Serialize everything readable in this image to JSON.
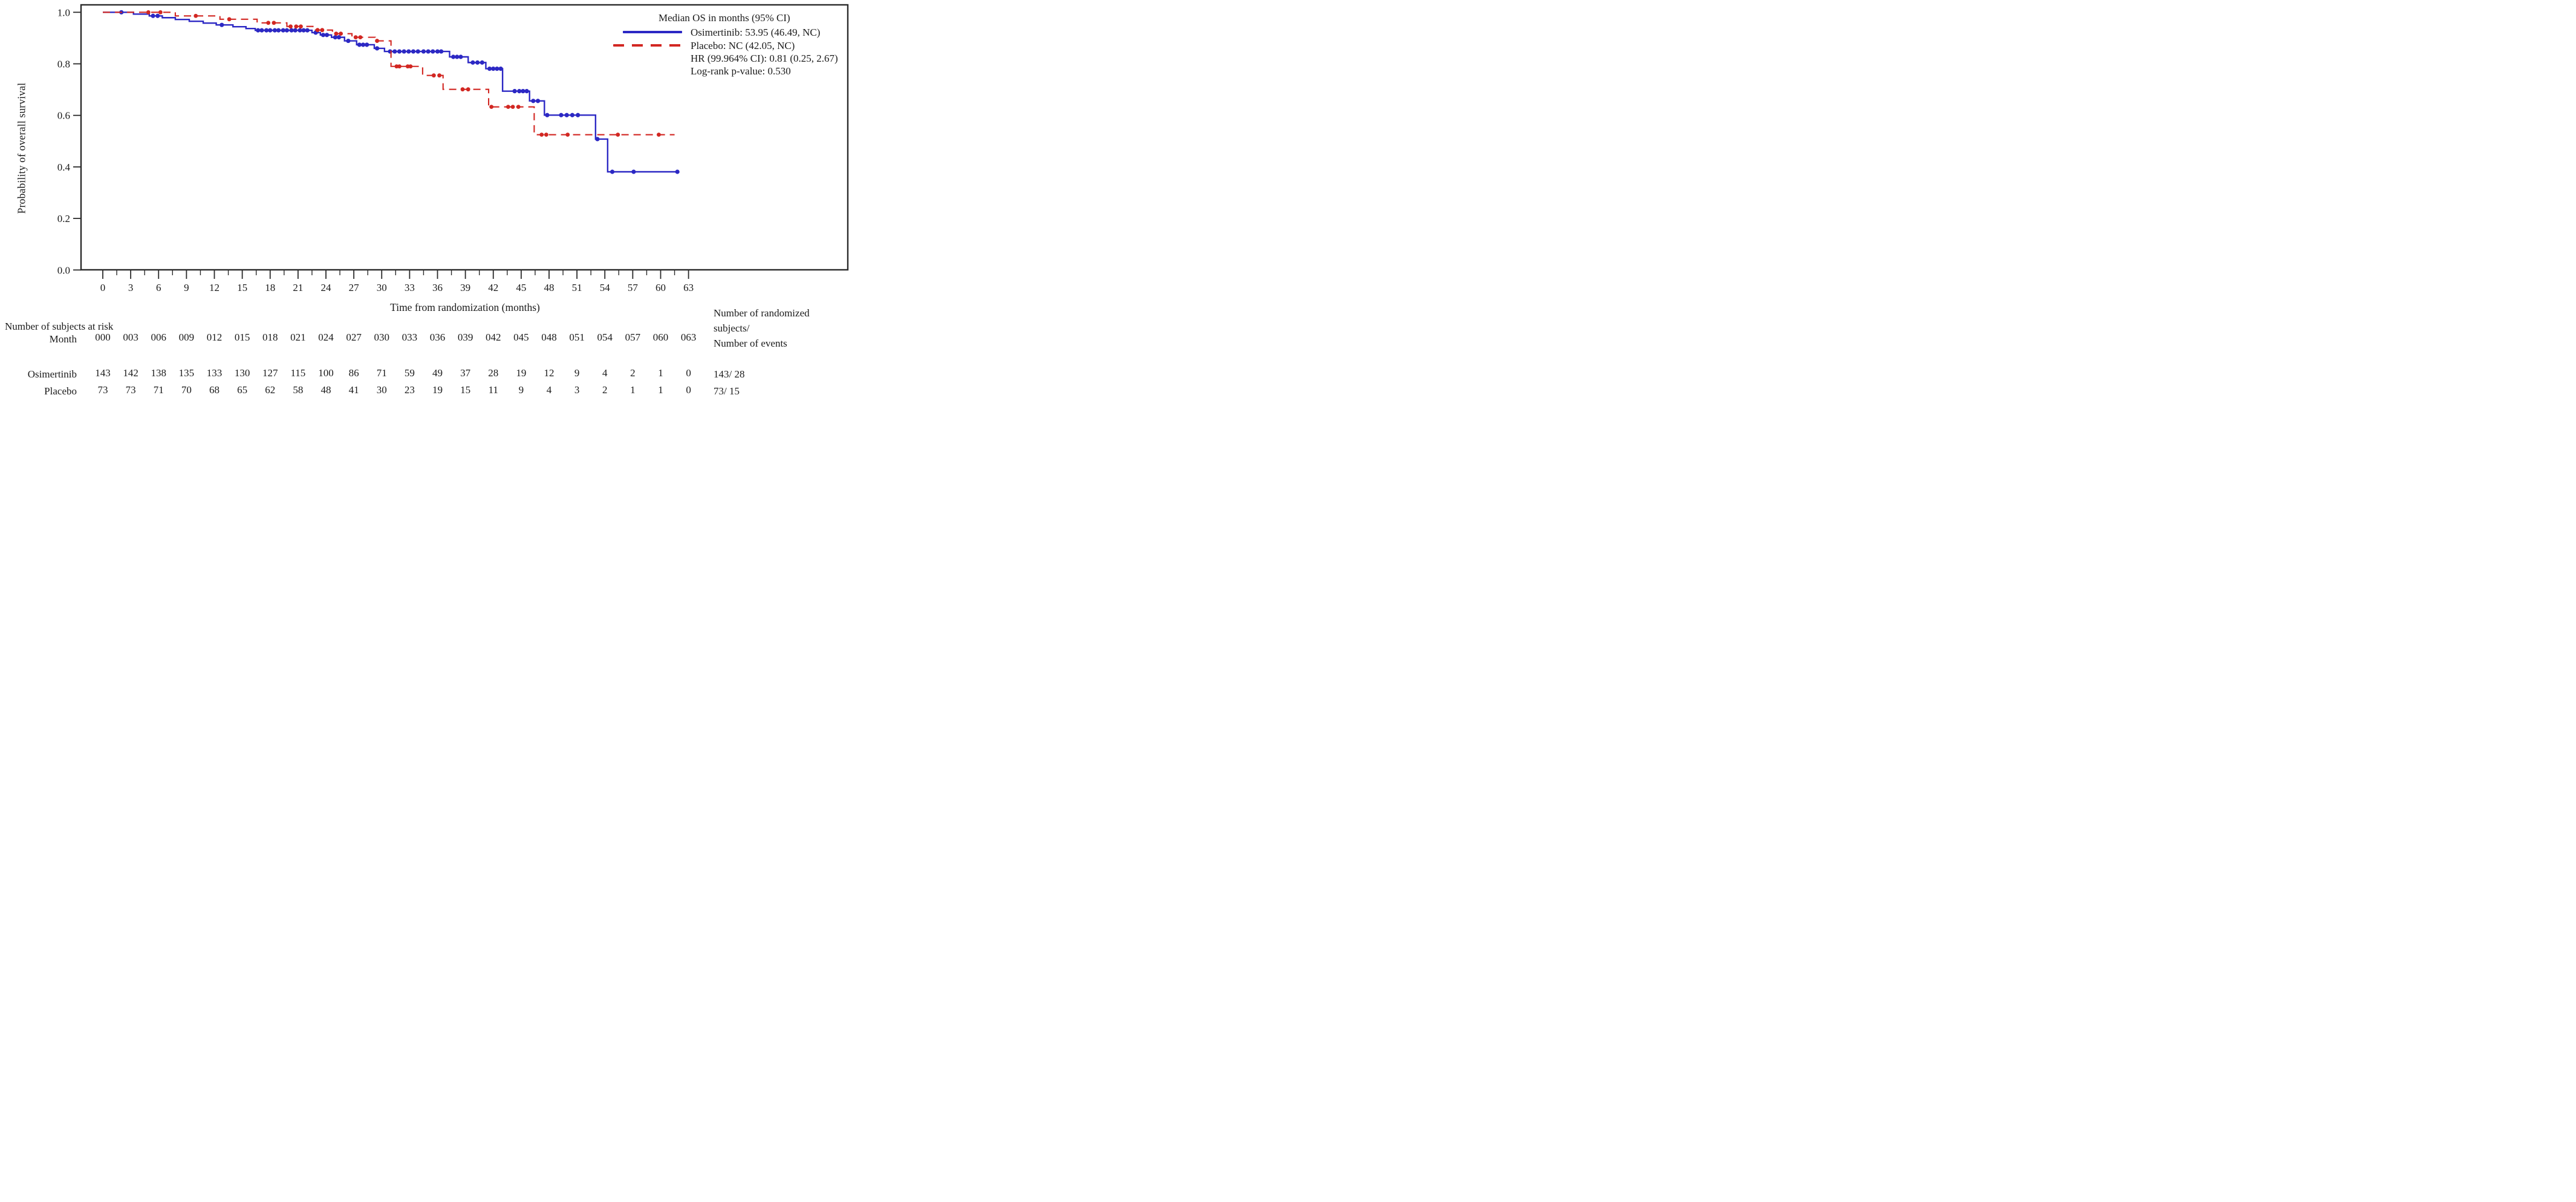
{
  "colors": {
    "osimertinib": "#2c28c4",
    "placebo": "#d22722",
    "axis": "#2b2b2b",
    "background": "#ffffff"
  },
  "legend": {
    "title": "Median OS in months (95% CI)",
    "items": [
      {
        "name": "Osimertinib",
        "style": "solid",
        "color": "#2c28c4",
        "label": "Osimertinib: 53.95 (46.49, NC)"
      },
      {
        "name": "Placebo",
        "style": "dashed",
        "color": "#d22722",
        "label": "Placebo: NC (42.05, NC)"
      }
    ],
    "hr_line": "HR (99.964% CI): 0.81 (0.25, 2.67)",
    "logrank_line": "Log-rank p-value: 0.530"
  },
  "chart_data": {
    "type": "line",
    "subtype": "kaplan-meier-step",
    "title": "",
    "xlabel": "Time from randomization (months)",
    "ylabel": "Probability of overall survival",
    "xlim": [
      0,
      63
    ],
    "ylim": [
      0.0,
      1.0
    ],
    "grid": false,
    "legend_position": "top-right-inside",
    "x_tick_values": [
      0,
      3,
      6,
      9,
      12,
      15,
      18,
      21,
      24,
      27,
      30,
      33,
      36,
      39,
      42,
      45,
      48,
      51,
      54,
      57,
      60,
      63
    ],
    "x_minor_tick_values": [
      1.5,
      4.5,
      7.5,
      10.5,
      13.5,
      16.5,
      19.5,
      22.5,
      25.5,
      28.5,
      31.5,
      34.5,
      37.5,
      40.5,
      43.5,
      46.5,
      49.5,
      52.5,
      55.5,
      58.5,
      61.5
    ],
    "y_tick_labels": [
      "1.0",
      "0.8",
      "0.6",
      "0.4",
      "0.2",
      "0.0"
    ],
    "y_tick_values": [
      1.0,
      0.8,
      0.6,
      0.4,
      0.2,
      0.0
    ],
    "series": [
      {
        "name": "Osimertinib",
        "color": "#2c28c4",
        "style": "solid",
        "start_value": 1.0,
        "end_time": 62.0,
        "steps": [
          [
            3.3,
            0.993
          ],
          [
            5.0,
            0.986
          ],
          [
            6.4,
            0.979
          ],
          [
            7.8,
            0.972
          ],
          [
            9.3,
            0.965
          ],
          [
            10.8,
            0.958
          ],
          [
            12.2,
            0.951
          ],
          [
            14.0,
            0.944
          ],
          [
            15.4,
            0.937
          ],
          [
            16.4,
            0.93
          ],
          [
            22.5,
            0.921
          ],
          [
            23.4,
            0.912
          ],
          [
            24.6,
            0.903
          ],
          [
            26.0,
            0.889
          ],
          [
            27.3,
            0.874
          ],
          [
            29.2,
            0.86
          ],
          [
            30.3,
            0.848
          ],
          [
            37.3,
            0.827
          ],
          [
            39.3,
            0.805
          ],
          [
            41.2,
            0.781
          ],
          [
            43.0,
            0.694
          ],
          [
            45.9,
            0.656
          ],
          [
            47.5,
            0.601
          ],
          [
            53.0,
            0.508
          ],
          [
            54.3,
            0.381
          ]
        ],
        "censor_times": [
          2.0,
          5.4,
          5.9,
          12.8,
          16.7,
          17.1,
          17.6,
          18.0,
          18.5,
          18.9,
          19.4,
          19.8,
          20.3,
          20.7,
          21.2,
          21.6,
          22.0,
          22.9,
          23.7,
          24.1,
          25.0,
          25.4,
          26.4,
          27.6,
          28.0,
          28.4,
          29.5,
          30.9,
          31.4,
          31.9,
          32.4,
          32.9,
          33.4,
          33.9,
          34.5,
          35.0,
          35.5,
          36.0,
          36.4,
          37.7,
          38.1,
          38.5,
          39.8,
          40.3,
          40.8,
          41.6,
          42.0,
          42.4,
          42.8,
          44.3,
          44.8,
          45.2,
          45.6,
          46.3,
          46.8,
          47.8,
          49.3,
          49.9,
          50.5,
          51.1,
          53.2,
          54.8,
          57.1,
          61.8
        ]
      },
      {
        "name": "Placebo",
        "color": "#d22722",
        "style": "dashed",
        "start_value": 1.0,
        "end_time": 61.5,
        "steps": [
          [
            7.8,
            0.986
          ],
          [
            12.6,
            0.973
          ],
          [
            16.6,
            0.959
          ],
          [
            19.8,
            0.945
          ],
          [
            22.6,
            0.931
          ],
          [
            24.7,
            0.917
          ],
          [
            26.8,
            0.903
          ],
          [
            29.3,
            0.889
          ],
          [
            31.0,
            0.79
          ],
          [
            34.4,
            0.755
          ],
          [
            36.6,
            0.701
          ],
          [
            41.5,
            0.633
          ],
          [
            46.4,
            0.525
          ]
        ],
        "censor_times": [
          4.9,
          6.2,
          10.0,
          13.6,
          17.8,
          18.4,
          20.2,
          20.8,
          21.3,
          23.1,
          23.6,
          25.1,
          25.6,
          27.2,
          27.7,
          29.5,
          31.6,
          31.9,
          32.8,
          33.1,
          35.6,
          36.2,
          38.7,
          39.3,
          41.8,
          43.6,
          44.1,
          44.7,
          47.2,
          47.7,
          50.0,
          55.4,
          59.8
        ]
      }
    ]
  },
  "risk_table": {
    "header": "Number of subjects at risk",
    "row_header": "Month",
    "month_labels": [
      "000",
      "003",
      "006",
      "009",
      "012",
      "015",
      "018",
      "021",
      "024",
      "027",
      "030",
      "033",
      "036",
      "039",
      "042",
      "045",
      "048",
      "051",
      "054",
      "057",
      "060",
      "063"
    ],
    "right_header_line1": "Number of randomized",
    "right_header_line2": "subjects/",
    "right_header_line3": "Number of events",
    "rows": [
      {
        "label": "Osimertinib",
        "counts": [
          143,
          142,
          138,
          135,
          133,
          130,
          127,
          115,
          100,
          86,
          71,
          59,
          49,
          37,
          28,
          19,
          12,
          9,
          4,
          2,
          1,
          0
        ],
        "summary": "143/ 28"
      },
      {
        "label": "Placebo",
        "counts": [
          73,
          73,
          71,
          70,
          68,
          65,
          62,
          58,
          48,
          41,
          30,
          23,
          19,
          15,
          11,
          9,
          4,
          3,
          2,
          1,
          1,
          0
        ],
        "summary": "73/ 15"
      }
    ]
  }
}
